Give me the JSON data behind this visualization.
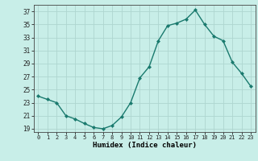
{
  "x": [
    0,
    1,
    2,
    3,
    4,
    5,
    6,
    7,
    8,
    9,
    10,
    11,
    12,
    13,
    14,
    15,
    16,
    17,
    18,
    19,
    20,
    21,
    22,
    23
  ],
  "y": [
    24.0,
    23.5,
    23.0,
    21.0,
    20.5,
    19.8,
    19.2,
    19.0,
    19.5,
    20.8,
    23.0,
    26.8,
    28.5,
    32.5,
    34.8,
    35.2,
    35.8,
    37.2,
    35.0,
    33.2,
    32.5,
    29.2,
    27.5,
    25.5
  ],
  "line_color": "#1a7a6e",
  "marker": "D",
  "marker_size": 2.0,
  "bg_color": "#c8eee8",
  "grid_color": "#aed6d0",
  "xlabel": "Humidex (Indice chaleur)",
  "ylabel_ticks": [
    19,
    21,
    23,
    25,
    27,
    29,
    31,
    33,
    35,
    37
  ],
  "xtick_labels": [
    "0",
    "1",
    "2",
    "3",
    "4",
    "5",
    "6",
    "7",
    "8",
    "9",
    "10",
    "11",
    "12",
    "13",
    "14",
    "15",
    "16",
    "17",
    "18",
    "19",
    "20",
    "21",
    "22",
    "23"
  ],
  "ylim": [
    18.5,
    38.0
  ],
  "xlim": [
    -0.5,
    23.5
  ]
}
